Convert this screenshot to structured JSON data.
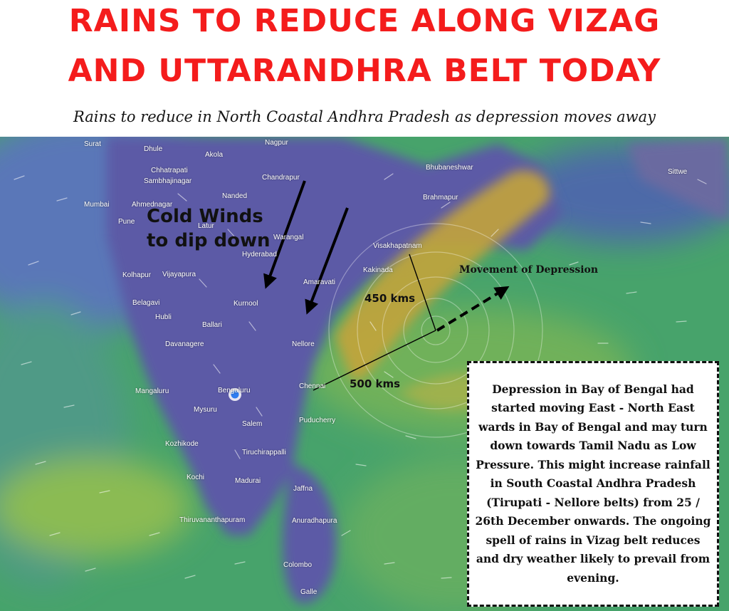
{
  "header": {
    "title_line1": "RAINS TO REDUCE ALONG VIZAG",
    "title_line2": "AND UTTARANDHRA BELT TODAY",
    "subtitle": "Rains to reduce in North Coastal Andhra Pradesh as depression moves away",
    "title_color": "#f41c1c"
  },
  "map": {
    "type": "wind-flow weather map",
    "place_labels": [
      "Surat",
      "Dhule",
      "Akola",
      "Nagpur",
      "Chhatrapati",
      "Sambhajinagar",
      "Chandrapur",
      "Bhubaneshwar",
      "Sittwe",
      "Mumbai",
      "Ahmednagar",
      "Nanded",
      "Brahmapur",
      "Pune",
      "Latur",
      "Warangal",
      "Hyderabad",
      "Visakhapatnam",
      "Kolhapur",
      "Vijayapura",
      "Kakinada",
      "Amaravati",
      "Belagavi",
      "Kurnool",
      "Hubli",
      "Ballari",
      "Davanagere",
      "Nellore",
      "Chennai",
      "Mangaluru",
      "Bengaluru",
      "Mysuru",
      "Puducherry",
      "Salem",
      "Kozhikode",
      "Tiruchirappalli",
      "Kochi",
      "Madurai",
      "Jaffna",
      "Thiruvananthapuram",
      "Anuradhapura",
      "Colombo",
      "Galle"
    ],
    "colors": {
      "land_cool": "#5a5ea8",
      "sea_green": "#48a36a",
      "depression_band": "#c8a83a"
    }
  },
  "annotations": {
    "cold_winds_line1": "Cold Winds",
    "cold_winds_line2": "to dip down",
    "distance_vizag": "450 kms",
    "distance_chennai": "500 kms",
    "movement_label": "Movement of Depression"
  },
  "info_box": {
    "text": "Depression in Bay of Bengal had started moving East - North East wards in Bay of Bengal and may turn down towards Tamil Nadu as Low Pressure. This might increase rainfall in South Coastal Andhra Pradesh (Tirupati - Nellore belts) from 25 / 26th December onwards. The ongoing spell of rains in Vizag belt reduces and dry weather likely to prevail from evening."
  }
}
